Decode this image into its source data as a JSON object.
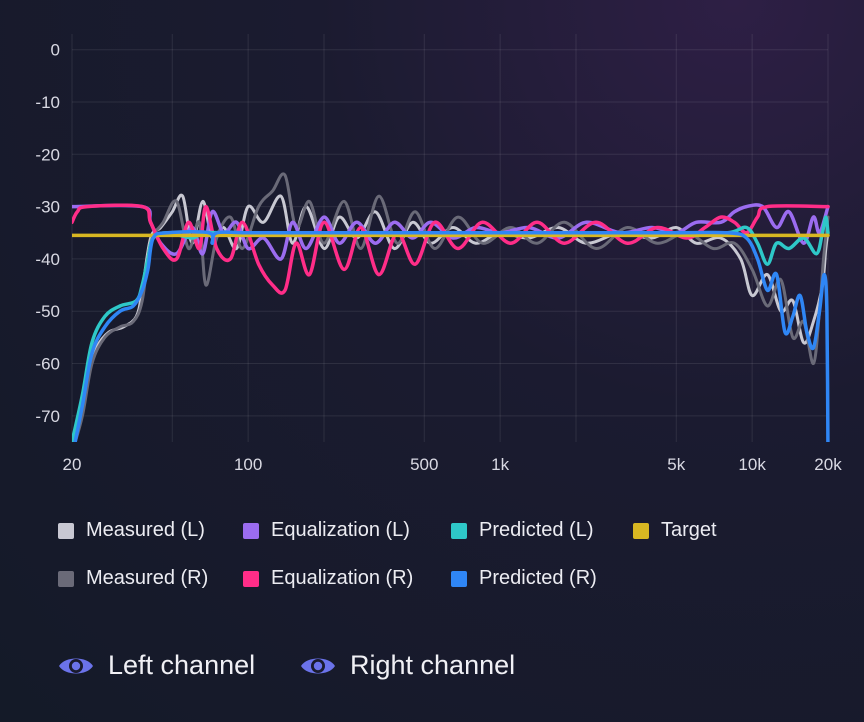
{
  "chart_data": {
    "type": "line",
    "xscale": "log",
    "xlim": [
      20,
      20000
    ],
    "ylim": [
      -75,
      3
    ],
    "x_ticks": [
      {
        "value": 20,
        "label": "20"
      },
      {
        "value": 100,
        "label": "100"
      },
      {
        "value": 500,
        "label": "500"
      },
      {
        "value": 1000,
        "label": "1k"
      },
      {
        "value": 5000,
        "label": "5k"
      },
      {
        "value": 10000,
        "label": "10k"
      },
      {
        "value": 20000,
        "label": "20k"
      }
    ],
    "y_ticks": [
      {
        "value": 0,
        "label": "0"
      },
      {
        "value": -10,
        "label": "-10"
      },
      {
        "value": -20,
        "label": "-20"
      },
      {
        "value": -30,
        "label": "-30"
      },
      {
        "value": -40,
        "label": "-40"
      },
      {
        "value": -50,
        "label": "-50"
      },
      {
        "value": -60,
        "label": "-60"
      },
      {
        "value": -70,
        "label": "-70"
      }
    ],
    "grid": true,
    "series": [
      {
        "name": "Measured (L)",
        "color": "#c8c8d2",
        "points": [
          [
            20,
            -78
          ],
          [
            21,
            -72
          ],
          [
            23,
            -62
          ],
          [
            25,
            -57
          ],
          [
            28,
            -54
          ],
          [
            32,
            -53
          ],
          [
            36,
            -51
          ],
          [
            38,
            -46
          ],
          [
            41,
            -36
          ],
          [
            45,
            -34
          ],
          [
            50,
            -31
          ],
          [
            55,
            -28
          ],
          [
            60,
            -37
          ],
          [
            66,
            -29
          ],
          [
            72,
            -36
          ],
          [
            80,
            -34
          ],
          [
            90,
            -38
          ],
          [
            100,
            -30
          ],
          [
            115,
            -33
          ],
          [
            135,
            -28
          ],
          [
            150,
            -37
          ],
          [
            170,
            -30
          ],
          [
            200,
            -38
          ],
          [
            230,
            -32
          ],
          [
            270,
            -36
          ],
          [
            320,
            -31
          ],
          [
            380,
            -38
          ],
          [
            450,
            -33
          ],
          [
            530,
            -37
          ],
          [
            650,
            -34
          ],
          [
            800,
            -37
          ],
          [
            1000,
            -35
          ],
          [
            1300,
            -36
          ],
          [
            1700,
            -34
          ],
          [
            2200,
            -37
          ],
          [
            3000,
            -35
          ],
          [
            4000,
            -36
          ],
          [
            5000,
            -34
          ],
          [
            6000,
            -37
          ],
          [
            7500,
            -36
          ],
          [
            9000,
            -40
          ],
          [
            10000,
            -47
          ],
          [
            11500,
            -43
          ],
          [
            13000,
            -50
          ],
          [
            14500,
            -48
          ],
          [
            16000,
            -56
          ],
          [
            17500,
            -52
          ],
          [
            19000,
            -45
          ],
          [
            19600,
            -38
          ],
          [
            20000,
            -35
          ]
        ]
      },
      {
        "name": "Measured (R)",
        "color": "#6a6a78",
        "points": [
          [
            20,
            -77
          ],
          [
            22,
            -70
          ],
          [
            24,
            -60
          ],
          [
            27,
            -55
          ],
          [
            31,
            -53
          ],
          [
            35,
            -52
          ],
          [
            38,
            -48
          ],
          [
            41,
            -37
          ],
          [
            46,
            -33
          ],
          [
            52,
            -29
          ],
          [
            58,
            -38
          ],
          [
            64,
            -33
          ],
          [
            68,
            -45
          ],
          [
            75,
            -36
          ],
          [
            85,
            -32
          ],
          [
            95,
            -38
          ],
          [
            110,
            -30
          ],
          [
            125,
            -27
          ],
          [
            140,
            -24
          ],
          [
            155,
            -34
          ],
          [
            175,
            -29
          ],
          [
            200,
            -37
          ],
          [
            240,
            -29
          ],
          [
            280,
            -38
          ],
          [
            330,
            -28
          ],
          [
            390,
            -37
          ],
          [
            460,
            -31
          ],
          [
            550,
            -38
          ],
          [
            680,
            -32
          ],
          [
            850,
            -37
          ],
          [
            1100,
            -34
          ],
          [
            1400,
            -37
          ],
          [
            1800,
            -33
          ],
          [
            2400,
            -38
          ],
          [
            3200,
            -34
          ],
          [
            4200,
            -37
          ],
          [
            5500,
            -35
          ],
          [
            7000,
            -38
          ],
          [
            8500,
            -37
          ],
          [
            10000,
            -42
          ],
          [
            11500,
            -49
          ],
          [
            13000,
            -44
          ],
          [
            14500,
            -55
          ],
          [
            16000,
            -52
          ],
          [
            17500,
            -60
          ],
          [
            18500,
            -50
          ],
          [
            19200,
            -40
          ],
          [
            20000,
            -32
          ]
        ]
      },
      {
        "name": "Equalization (L)",
        "color": "#9b6cf0",
        "points": [
          [
            20,
            -30
          ],
          [
            38,
            -30
          ],
          [
            41,
            -33
          ],
          [
            45,
            -37
          ],
          [
            52,
            -39
          ],
          [
            60,
            -34
          ],
          [
            66,
            -39
          ],
          [
            72,
            -31
          ],
          [
            80,
            -35
          ],
          [
            90,
            -33
          ],
          [
            100,
            -38
          ],
          [
            115,
            -36
          ],
          [
            135,
            -40
          ],
          [
            150,
            -33
          ],
          [
            170,
            -38
          ],
          [
            200,
            -32
          ],
          [
            230,
            -37
          ],
          [
            270,
            -33
          ],
          [
            320,
            -37
          ],
          [
            380,
            -33
          ],
          [
            450,
            -36
          ],
          [
            530,
            -33
          ],
          [
            650,
            -36
          ],
          [
            800,
            -34
          ],
          [
            1000,
            -35
          ],
          [
            1300,
            -34
          ],
          [
            1700,
            -36
          ],
          [
            2200,
            -33
          ],
          [
            3000,
            -35
          ],
          [
            4000,
            -34
          ],
          [
            5000,
            -35
          ],
          [
            6000,
            -33
          ],
          [
            7500,
            -33
          ],
          [
            8500,
            -31
          ],
          [
            9500,
            -30
          ],
          [
            11000,
            -30
          ],
          [
            12500,
            -34
          ],
          [
            14000,
            -31
          ],
          [
            16000,
            -37
          ],
          [
            17500,
            -32
          ],
          [
            18500,
            -35
          ],
          [
            20000,
            -30
          ]
        ]
      },
      {
        "name": "Equalization (R)",
        "color": "#ff2d88",
        "points": [
          [
            20,
            -33
          ],
          [
            21,
            -31
          ],
          [
            23,
            -30
          ],
          [
            38,
            -30
          ],
          [
            41,
            -33
          ],
          [
            46,
            -38
          ],
          [
            52,
            -40
          ],
          [
            58,
            -33
          ],
          [
            64,
            -38
          ],
          [
            68,
            -30
          ],
          [
            75,
            -38
          ],
          [
            85,
            -40
          ],
          [
            95,
            -33
          ],
          [
            110,
            -41
          ],
          [
            125,
            -45
          ],
          [
            140,
            -46
          ],
          [
            155,
            -37
          ],
          [
            175,
            -43
          ],
          [
            200,
            -33
          ],
          [
            240,
            -42
          ],
          [
            280,
            -34
          ],
          [
            330,
            -43
          ],
          [
            390,
            -35
          ],
          [
            460,
            -41
          ],
          [
            550,
            -33
          ],
          [
            680,
            -38
          ],
          [
            850,
            -33
          ],
          [
            1100,
            -37
          ],
          [
            1400,
            -33
          ],
          [
            1800,
            -37
          ],
          [
            2400,
            -33
          ],
          [
            3200,
            -37
          ],
          [
            4200,
            -34
          ],
          [
            5500,
            -36
          ],
          [
            6500,
            -34
          ],
          [
            7500,
            -32
          ],
          [
            8500,
            -33
          ],
          [
            9500,
            -35
          ],
          [
            10500,
            -32
          ],
          [
            11500,
            -30
          ],
          [
            20000,
            -30
          ]
        ]
      },
      {
        "name": "Predicted (L)",
        "color": "#2ec8c8",
        "points": [
          [
            20,
            -75
          ],
          [
            22,
            -66
          ],
          [
            24,
            -56
          ],
          [
            27,
            -51
          ],
          [
            31,
            -49
          ],
          [
            36,
            -48
          ],
          [
            38,
            -45
          ],
          [
            40,
            -40
          ],
          [
            42,
            -36
          ],
          [
            48,
            -35
          ],
          [
            60,
            -36
          ],
          [
            66,
            -35
          ],
          [
            80,
            -35
          ],
          [
            100,
            -35
          ],
          [
            200,
            -35
          ],
          [
            500,
            -35
          ],
          [
            1000,
            -35
          ],
          [
            2000,
            -35
          ],
          [
            5000,
            -35
          ],
          [
            8000,
            -35
          ],
          [
            9500,
            -34
          ],
          [
            10500,
            -37
          ],
          [
            11500,
            -41
          ],
          [
            12500,
            -37
          ],
          [
            14000,
            -38
          ],
          [
            16000,
            -36
          ],
          [
            18000,
            -39
          ],
          [
            19000,
            -35
          ],
          [
            19600,
            -32
          ],
          [
            20000,
            -35
          ]
        ]
      },
      {
        "name": "Target",
        "color": "#d8b722",
        "points": [
          [
            20,
            -35.5
          ],
          [
            20000,
            -35.5
          ]
        ]
      },
      {
        "name": "Predicted (R)",
        "color": "#2f86f5",
        "points": [
          [
            20,
            -78
          ],
          [
            22,
            -68
          ],
          [
            24,
            -58
          ],
          [
            27,
            -53
          ],
          [
            31,
            -50
          ],
          [
            35,
            -49
          ],
          [
            38,
            -46
          ],
          [
            40,
            -42
          ],
          [
            42,
            -36
          ],
          [
            48,
            -35
          ],
          [
            70,
            -35
          ],
          [
            72,
            -37
          ],
          [
            75,
            -35
          ],
          [
            100,
            -35
          ],
          [
            200,
            -35
          ],
          [
            500,
            -35
          ],
          [
            1000,
            -35
          ],
          [
            2000,
            -35
          ],
          [
            5000,
            -35
          ],
          [
            8000,
            -35
          ],
          [
            9500,
            -36
          ],
          [
            10500,
            -40
          ],
          [
            11500,
            -46
          ],
          [
            12500,
            -43
          ],
          [
            13500,
            -54
          ],
          [
            14500,
            -51
          ],
          [
            15500,
            -47
          ],
          [
            16500,
            -54
          ],
          [
            17500,
            -57
          ],
          [
            18500,
            -50
          ],
          [
            19300,
            -43
          ],
          [
            19800,
            -50
          ],
          [
            20000,
            -78
          ]
        ]
      }
    ]
  },
  "legend": [
    {
      "label": "Measured (L)",
      "color": "#c8c8d2"
    },
    {
      "label": "Equalization (L)",
      "color": "#9b6cf0"
    },
    {
      "label": "Predicted (L)",
      "color": "#2ec8c8"
    },
    {
      "label": "Target",
      "color": "#d8b722"
    },
    {
      "label": "Measured (R)",
      "color": "#6a6a78"
    },
    {
      "label": "Equalization (R)",
      "color": "#ff2d88"
    },
    {
      "label": "Predicted (R)",
      "color": "#2f86f5"
    }
  ],
  "toggles": {
    "left": {
      "label": "Left channel",
      "icon": "eye-icon",
      "color": "#6b73ea"
    },
    "right": {
      "label": "Right channel",
      "icon": "eye-icon",
      "color": "#6b73ea"
    }
  }
}
